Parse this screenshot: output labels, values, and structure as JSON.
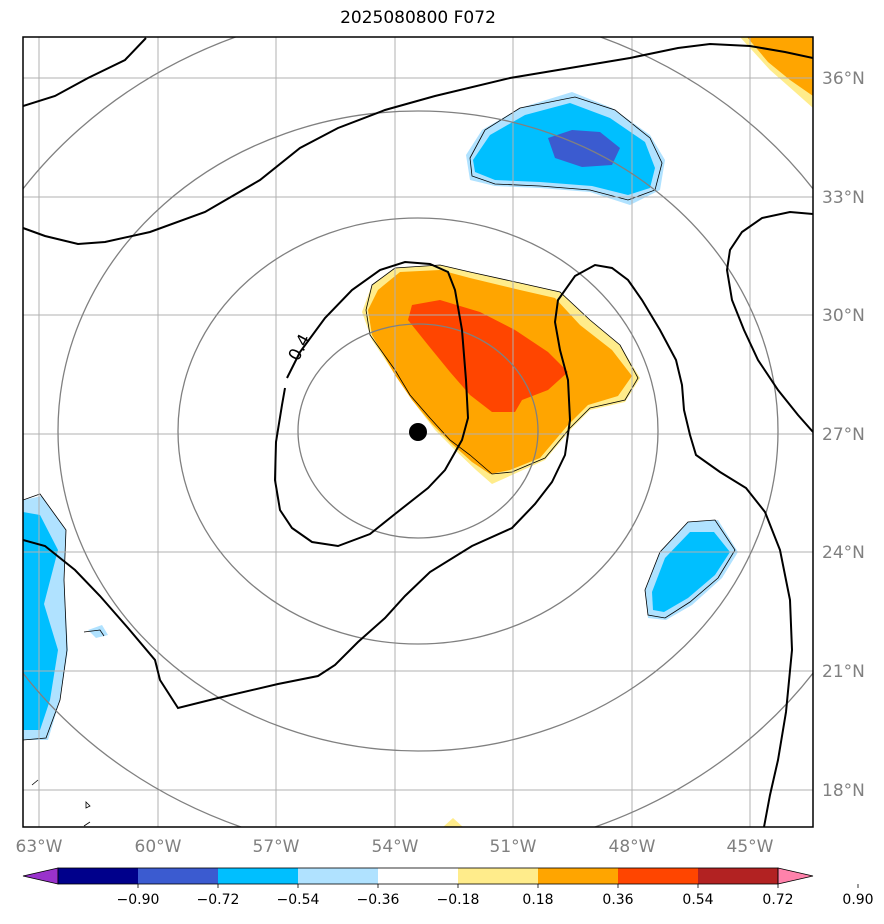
{
  "title": "2025080800 F072",
  "contour_label": "0.4",
  "lon_ticks": [
    "63°W",
    "60°W",
    "57°W",
    "54°W",
    "51°W",
    "48°W",
    "45°W"
  ],
  "lat_ticks": [
    "36°N",
    "33°N",
    "30°N",
    "27°N",
    "24°N",
    "21°N",
    "18°N"
  ],
  "colorbar": {
    "colors": [
      "#9932CC",
      "#00008B",
      "#3B5BD0",
      "#00BFFF",
      "#B0E2FF",
      "#FFFFFF",
      "#FFEC8B",
      "#FFA500",
      "#FF4500",
      "#B22222",
      "#FF82AB"
    ],
    "labels": [
      "−0.90",
      "−0.72",
      "−0.54",
      "−0.36",
      "−0.18",
      "0.18",
      "0.36",
      "0.54",
      "0.72",
      "0.90"
    ]
  }
}
